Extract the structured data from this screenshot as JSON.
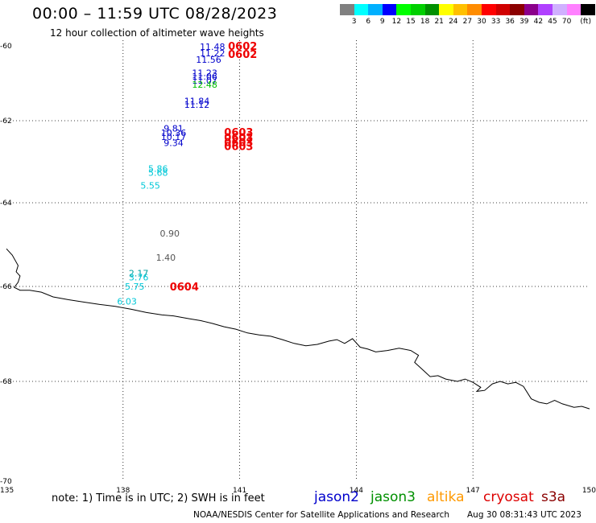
{
  "title": "00:00 – 11:59 UTC 08/28/2023",
  "subtitle": "12 hour collection of altimeter wave heights",
  "scale": {
    "colors": [
      "#808080",
      "#00ffff",
      "#00b0ff",
      "#0000ff",
      "#00ff00",
      "#00d000",
      "#009000",
      "#ffff00",
      "#ffc000",
      "#ff8c00",
      "#ff0000",
      "#d00000",
      "#8b0000",
      "#8b008b",
      "#b040ff",
      "#d0b0ff",
      "#ff80ff",
      "#000000"
    ],
    "labels": [
      "3",
      "6",
      "9",
      "12",
      "15",
      "18",
      "21",
      "24",
      "27",
      "30",
      "33",
      "36",
      "39",
      "42",
      "45",
      "70",
      "(ft)"
    ]
  },
  "map": {
    "lat_labels": [
      "-60",
      "-62",
      "-64",
      "-66",
      "-68",
      "-70"
    ],
    "lon_labels": [
      "135",
      "138",
      "141",
      "144",
      "147",
      "150"
    ],
    "observations": [
      {
        "text": "11.48",
        "color": "#0000cc",
        "lon": 140.3,
        "lat": -60.02
      },
      {
        "text": "11.22",
        "color": "#0000cc",
        "lon": 140.3,
        "lat": -60.19
      },
      {
        "text": "11.56",
        "color": "#0000cc",
        "lon": 140.2,
        "lat": -60.37
      },
      {
        "text": "11.23",
        "color": "#0000cc",
        "lon": 140.1,
        "lat": -60.72
      },
      {
        "text": "11.06",
        "color": "#0000cc",
        "lon": 140.1,
        "lat": -60.82
      },
      {
        "text": "11.07",
        "color": "#0000cc",
        "lon": 140.1,
        "lat": -60.92
      },
      {
        "text": "12.48",
        "color": "#00c000",
        "lon": 140.1,
        "lat": -61.03
      },
      {
        "text": "11.84",
        "color": "#0000cc",
        "lon": 139.9,
        "lat": -61.47
      },
      {
        "text": "11.12",
        "color": "#0000cc",
        "lon": 139.9,
        "lat": -61.57
      },
      {
        "text": "9.81",
        "color": "#0000cc",
        "lon": 139.3,
        "lat": -62.19
      },
      {
        "text": "10.36",
        "color": "#0000cc",
        "lon": 139.3,
        "lat": -62.29
      },
      {
        "text": "10.17",
        "color": "#0000cc",
        "lon": 139.3,
        "lat": -62.39
      },
      {
        "text": "9.34",
        "color": "#0000cc",
        "lon": 139.3,
        "lat": -62.54
      },
      {
        "text": "5.86",
        "color": "#00c8d8",
        "lon": 138.9,
        "lat": -63.17
      },
      {
        "text": "5.68",
        "color": "#00c8d8",
        "lon": 138.9,
        "lat": -63.26
      },
      {
        "text": "5.55",
        "color": "#00c8d8",
        "lon": 138.7,
        "lat": -63.58
      },
      {
        "text": "0.90",
        "color": "#555555",
        "lon": 139.2,
        "lat": -64.73
      },
      {
        "text": "1.40",
        "color": "#555555",
        "lon": 139.1,
        "lat": -65.31
      },
      {
        "text": "2.17",
        "color": "#00a0a0",
        "lon": 138.4,
        "lat": -65.68
      },
      {
        "text": "3.76",
        "color": "#00c8d8",
        "lon": 138.4,
        "lat": -65.78
      },
      {
        "text": "5.75",
        "color": "#00c8d8",
        "lon": 138.3,
        "lat": -66.0
      },
      {
        "text": "6.03",
        "color": "#00c8d8",
        "lon": 138.1,
        "lat": -66.31
      }
    ],
    "passes": [
      {
        "text": "0602",
        "lon": 140.7,
        "lat": -60.02
      },
      {
        "text": "0602",
        "lon": 140.7,
        "lat": -60.24
      },
      {
        "text": "0603",
        "lon": 140.6,
        "lat": -62.29
      },
      {
        "text": "0603",
        "lon": 140.6,
        "lat": -62.42
      },
      {
        "text": "0603",
        "lon": 140.6,
        "lat": -62.54
      },
      {
        "text": "0603",
        "lon": 140.6,
        "lat": -62.64
      },
      {
        "text": "0604",
        "lon": 139.2,
        "lat": -66.02
      }
    ],
    "coastline": [
      [
        135.0,
        -65.1
      ],
      [
        135.15,
        -65.25
      ],
      [
        135.3,
        -65.5
      ],
      [
        135.25,
        -65.65
      ],
      [
        135.35,
        -65.75
      ],
      [
        135.3,
        -65.9
      ],
      [
        135.2,
        -66.02
      ],
      [
        135.35,
        -66.08
      ],
      [
        135.6,
        -66.08
      ],
      [
        135.9,
        -66.12
      ],
      [
        136.2,
        -66.22
      ],
      [
        136.6,
        -66.28
      ],
      [
        137.0,
        -66.33
      ],
      [
        137.4,
        -66.38
      ],
      [
        137.8,
        -66.42
      ],
      [
        138.2,
        -66.48
      ],
      [
        138.6,
        -66.55
      ],
      [
        139.0,
        -66.6
      ],
      [
        139.3,
        -66.62
      ],
      [
        139.7,
        -66.68
      ],
      [
        140.0,
        -66.72
      ],
      [
        140.3,
        -66.78
      ],
      [
        140.6,
        -66.85
      ],
      [
        140.9,
        -66.9
      ],
      [
        141.2,
        -66.98
      ],
      [
        141.5,
        -67.02
      ],
      [
        141.8,
        -67.05
      ],
      [
        142.1,
        -67.12
      ],
      [
        142.4,
        -67.2
      ],
      [
        142.7,
        -67.25
      ],
      [
        143.0,
        -67.22
      ],
      [
        143.3,
        -67.15
      ],
      [
        143.5,
        -67.12
      ],
      [
        143.7,
        -67.2
      ],
      [
        143.9,
        -67.1
      ],
      [
        144.1,
        -67.28
      ],
      [
        144.3,
        -67.32
      ],
      [
        144.5,
        -67.38
      ],
      [
        144.8,
        -67.35
      ],
      [
        145.1,
        -67.3
      ],
      [
        145.4,
        -67.35
      ],
      [
        145.6,
        -67.45
      ],
      [
        145.5,
        -67.6
      ],
      [
        145.7,
        -67.75
      ],
      [
        145.9,
        -67.9
      ],
      [
        146.1,
        -67.88
      ],
      [
        146.3,
        -67.95
      ],
      [
        146.6,
        -68.0
      ],
      [
        146.8,
        -67.95
      ],
      [
        147.0,
        -68.02
      ],
      [
        147.2,
        -68.12
      ],
      [
        147.1,
        -68.2
      ],
      [
        147.3,
        -68.18
      ],
      [
        147.5,
        -68.05
      ],
      [
        147.7,
        -68.0
      ],
      [
        147.9,
        -68.05
      ],
      [
        148.1,
        -68.02
      ],
      [
        148.3,
        -68.1
      ],
      [
        148.5,
        -68.35
      ],
      [
        148.7,
        -68.42
      ],
      [
        148.9,
        -68.45
      ],
      [
        149.1,
        -68.38
      ],
      [
        149.3,
        -68.45
      ],
      [
        149.6,
        -68.52
      ],
      [
        149.8,
        -68.5
      ],
      [
        150.0,
        -68.55
      ]
    ]
  },
  "note": "note:  1) Time is in UTC; 2) SWH is in feet",
  "satellites": [
    {
      "name": "jason2",
      "color": "#0000cc"
    },
    {
      "name": "jason3",
      "color": "#009000"
    },
    {
      "name": "altika",
      "color": "#ff9900"
    },
    {
      "name": "cryosat",
      "color": "#dd0000"
    },
    {
      "name": "s3a",
      "color": "#8b0000"
    }
  ],
  "credit": "NOAA/NESDIS Center for Satellite Applications and Research",
  "timestamp": "Aug 30 08:31:43 UTC 2023"
}
